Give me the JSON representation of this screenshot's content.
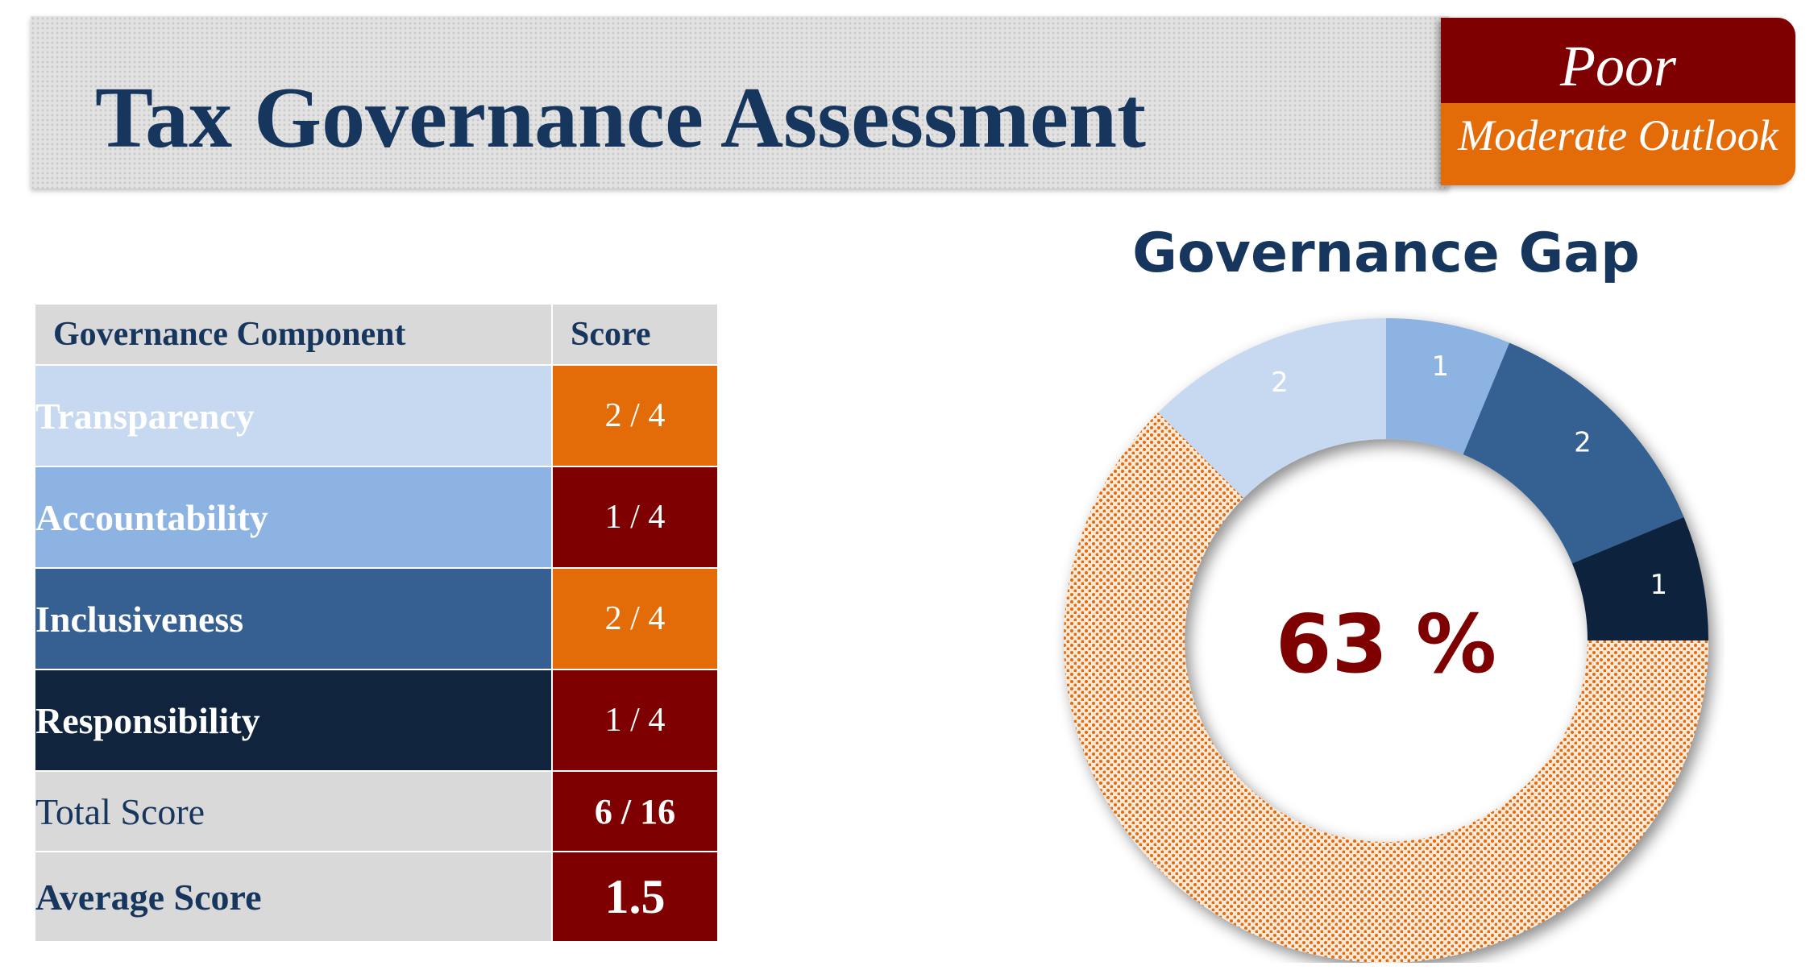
{
  "header": {
    "title": "Tax Governance Assessment",
    "rating": "Poor",
    "outlook": "Moderate Outlook"
  },
  "table": {
    "headers": [
      "Governance Component",
      "Score"
    ],
    "rows": [
      {
        "component": "Transparency",
        "score": "2 / 4",
        "color": "#c6d9f1",
        "score_color": "#e36c09"
      },
      {
        "component": "Accountability",
        "score": "1 / 4",
        "color": "#8db3e2",
        "score_color": "#7f0000"
      },
      {
        "component": "Inclusiveness",
        "score": "2 / 4",
        "color": "#366092",
        "score_color": "#e36c09"
      },
      {
        "component": "Responsibility",
        "score": "1 / 4",
        "color": "#10243e",
        "score_color": "#7f0000"
      }
    ],
    "total_label": "Total Score",
    "total_value": "6 / 16",
    "average_label": "Average Score",
    "average_value": "1.5"
  },
  "chart_data": {
    "type": "pie",
    "variant": "donut",
    "title": "Governance Gap",
    "center_label": "63 %",
    "slices": [
      {
        "label": "1",
        "value": 1,
        "color": "#8db3e2"
      },
      {
        "label": "2",
        "value": 2,
        "color": "#366092"
      },
      {
        "label": "1",
        "value": 1,
        "color": "#10243e"
      },
      {
        "label": "",
        "value": 10,
        "color": "#e36c09",
        "pattern": "dotted"
      },
      {
        "label": "2",
        "value": 2,
        "color": "#c6d9f1"
      }
    ]
  },
  "colors": {
    "navy": "#17365d",
    "poor_red": "#7f0000",
    "orange": "#e36c09",
    "header_gray": "#d9d9d9"
  }
}
